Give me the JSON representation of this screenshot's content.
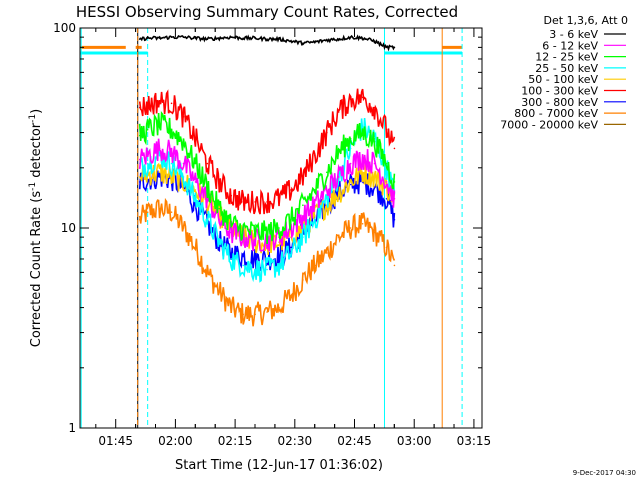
{
  "chart_data": {
    "type": "line",
    "title": "HESSI Observing Summary Count Rates, Corrected",
    "xlabel": "Start Time (12-Jun-17 01:36:02)",
    "ylabel": "Corrected Count Rate (s⁻¹ detector⁻¹)",
    "ylabel_parts": [
      "Corrected Count Rate (s",
      "-1",
      " detector",
      "-1",
      ")"
    ],
    "y_scale": "log",
    "ylim": [
      1,
      100
    ],
    "y_ticks": [
      {
        "value": 1,
        "label": "1"
      },
      {
        "value": 10,
        "label": "10"
      },
      {
        "value": 100,
        "label": "100"
      }
    ],
    "xlim_minutes_after_start": [
      0,
      101
    ],
    "x_ticks": [
      {
        "label": "01:45",
        "minutes": 8.97
      },
      {
        "label": "02:00",
        "minutes": 23.97
      },
      {
        "label": "02:15",
        "minutes": 38.97
      },
      {
        "label": "02:30",
        "minutes": 53.97
      },
      {
        "label": "02:45",
        "minutes": 68.97
      },
      {
        "label": "03:00",
        "minutes": 83.97
      },
      {
        "label": "03:15",
        "minutes": 98.97
      }
    ],
    "legend_header": "Det 1,3,6, Att 0",
    "legend_position": "right",
    "x_minutes": [
      15,
      17,
      20,
      23,
      26,
      29,
      32,
      35,
      38,
      41,
      44,
      47,
      50,
      53,
      56,
      59,
      62,
      65,
      68,
      71,
      74,
      77,
      79
    ],
    "series": [
      {
        "name": "3 - 6 keV",
        "color": "#000000",
        "values": [
          88,
          89,
          89,
          90,
          90,
          89,
          88,
          89,
          90,
          89,
          89,
          88,
          88,
          86,
          84,
          85,
          87,
          88,
          90,
          89,
          86,
          80,
          80
        ]
      },
      {
        "name": "6 - 12 keV",
        "color": "#ff00ff",
        "values": [
          22,
          23,
          25,
          24,
          21,
          17,
          14,
          11,
          9.5,
          9,
          8.7,
          8.7,
          9,
          10,
          11.5,
          13,
          15.5,
          18,
          21,
          22.5,
          21,
          17,
          14
        ]
      },
      {
        "name": "12 - 25 keV",
        "color": "#00ff00",
        "values": [
          29,
          31,
          33,
          31,
          27,
          21,
          16,
          12.5,
          10.5,
          9.8,
          9.5,
          9.5,
          10,
          11,
          13,
          15.5,
          19,
          24,
          28,
          30,
          27,
          21,
          17
        ]
      },
      {
        "name": "25 - 50 keV",
        "color": "#00ffff",
        "values": [
          20,
          21,
          23,
          21,
          18,
          14,
          11,
          8.5,
          7,
          6.5,
          6.2,
          6.2,
          6.5,
          7.5,
          9,
          11,
          14,
          18,
          25,
          32,
          28,
          20,
          15
        ]
      },
      {
        "name": "50 - 100 keV",
        "color": "#ffcc00",
        "values": [
          18,
          18.5,
          19,
          18,
          17,
          15.5,
          13.5,
          11.5,
          10,
          9,
          8.5,
          8.3,
          8.5,
          9,
          10,
          11.5,
          13,
          15,
          17,
          19,
          18,
          16,
          14
        ]
      },
      {
        "name": "100 - 300 keV",
        "color": "#ff0000",
        "values": [
          40,
          41,
          43,
          42,
          36,
          28,
          21,
          17,
          14.5,
          13.5,
          13.5,
          13.5,
          14,
          15.5,
          18,
          23,
          30,
          38,
          44,
          45,
          40,
          31,
          25
        ]
      },
      {
        "name": "300 - 800 keV",
        "color": "#0000ff",
        "values": [
          17,
          17.5,
          18,
          17.5,
          16,
          13,
          10.5,
          8.5,
          7.5,
          7.2,
          7,
          7,
          7.2,
          8,
          9.5,
          11,
          13,
          15,
          16.5,
          17,
          16,
          14,
          11
        ]
      },
      {
        "name": "800 - 7000 keV",
        "color": "#ff8000",
        "values": [
          11,
          12,
          12.5,
          12,
          10,
          8,
          6,
          4.8,
          4,
          3.7,
          3.7,
          3.8,
          4,
          4.6,
          5.5,
          6.5,
          7.5,
          9,
          10,
          10.5,
          9.5,
          8,
          6.5
        ]
      },
      {
        "name": "7000 - 20000 keV",
        "color": "#996600",
        "values": []
      }
    ],
    "attenuator_flag_segments": [
      {
        "color": "#ff8000",
        "level": 80,
        "x_minutes": [
          0,
          11.5
        ]
      },
      {
        "color": "#ff8000",
        "level": 80,
        "x_minutes": [
          14,
          15.5
        ]
      },
      {
        "color": "#ff8000",
        "level": 80,
        "x_minutes": [
          91,
          96
        ]
      },
      {
        "color": "#00ffff",
        "level": 75,
        "x_minutes": [
          0,
          17
        ]
      },
      {
        "color": "#00ffff",
        "level": 75,
        "x_minutes": [
          76.5,
          96
        ]
      }
    ],
    "vertical_markers": [
      {
        "x_minutes": 0.3,
        "color": "#00ffff",
        "style": "solid"
      },
      {
        "x_minutes": 14.5,
        "color": "#000000",
        "style": "solid"
      },
      {
        "x_minutes": 14.5,
        "color": "#ff8000",
        "style": "dashed"
      },
      {
        "x_minutes": 17,
        "color": "#00ffff",
        "style": "dashed"
      },
      {
        "x_minutes": 76.5,
        "color": "#00ffff",
        "style": "solid"
      },
      {
        "x_minutes": 91,
        "color": "#ff8000",
        "style": "solid"
      },
      {
        "x_minutes": 96,
        "color": "#00ffff",
        "style": "dashed"
      }
    ],
    "grid": false
  },
  "footer": {
    "date_stamp": "9-Dec-2017 04:30"
  }
}
